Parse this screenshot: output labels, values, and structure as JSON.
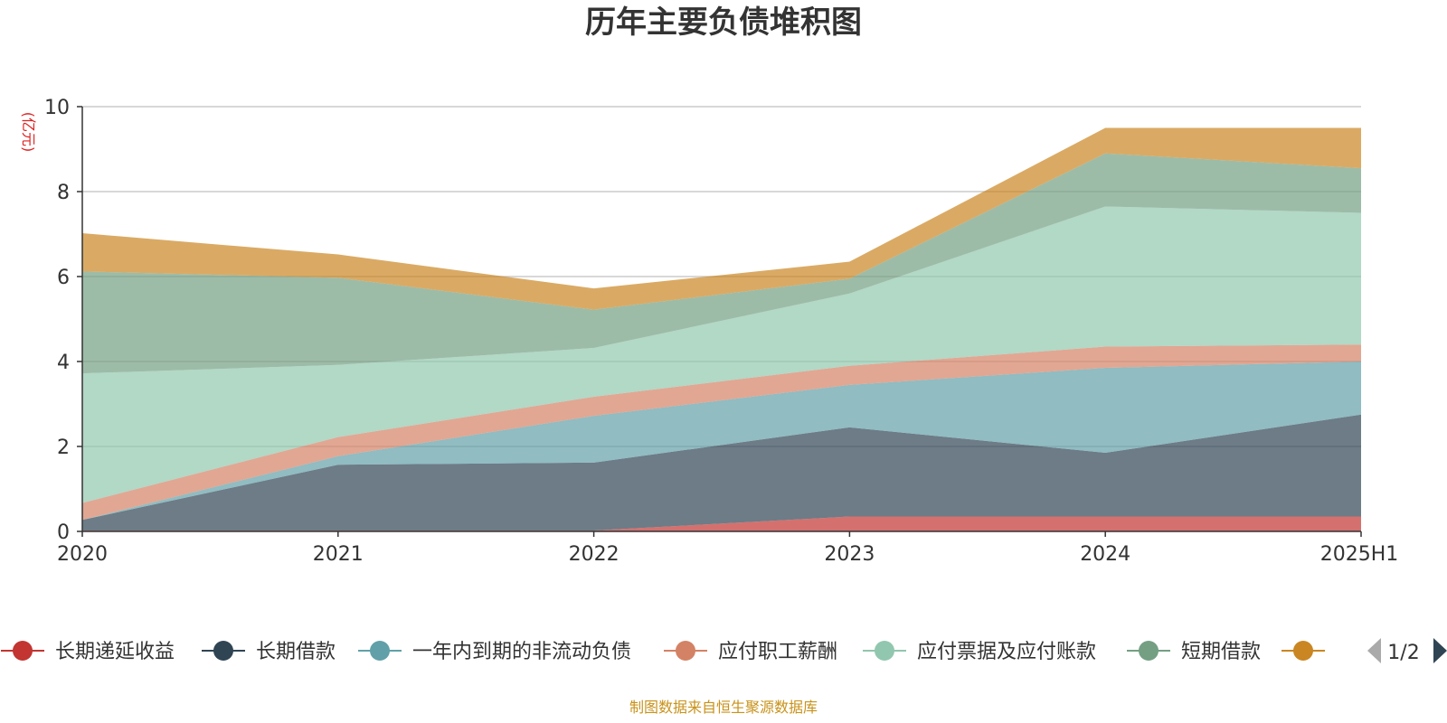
{
  "chart_data": {
    "type": "area",
    "stacked": true,
    "title": "历年主要负债堆积图",
    "ylabel": "(亿元)",
    "categories": [
      "2020",
      "2021",
      "2022",
      "2023",
      "2024",
      "2025H1"
    ],
    "ylim": [
      0,
      10
    ],
    "yticks": [
      0,
      2,
      4,
      6,
      8,
      10
    ],
    "grid": true,
    "legend_position": "bottom",
    "series": [
      {
        "name": "长期递延收益",
        "color": "#c23531",
        "values": [
          0.02,
          0.02,
          0.02,
          0.35,
          0.35,
          0.35
        ]
      },
      {
        "name": "长期借款",
        "color": "#2f4554",
        "values": [
          0.25,
          1.55,
          1.6,
          2.1,
          1.5,
          2.4
        ]
      },
      {
        "name": "一年内到期的非流动负债",
        "color": "#61a0a8",
        "values": [
          0.0,
          0.2,
          1.1,
          1.0,
          2.0,
          1.25
        ]
      },
      {
        "name": "应付职工薪酬",
        "color": "#d48265",
        "values": [
          0.4,
          0.45,
          0.45,
          0.45,
          0.5,
          0.4
        ]
      },
      {
        "name": "应付票据及应付账款",
        "color": "#91c7ae",
        "values": [
          3.05,
          1.7,
          1.15,
          1.7,
          3.3,
          3.1
        ]
      },
      {
        "name": "短期借款",
        "color": "#749f83",
        "values": [
          2.4,
          2.05,
          0.9,
          0.35,
          1.25,
          1.05
        ]
      },
      {
        "name": "",
        "color": "#ca8622",
        "values": [
          0.9,
          0.55,
          0.5,
          0.4,
          0.6,
          0.95
        ]
      }
    ]
  },
  "legend": {
    "page": "1/2"
  },
  "source": "制图数据来自恒生聚源数据库",
  "icons": {
    "prev": "triangle-left-icon",
    "next": "triangle-right-icon"
  }
}
